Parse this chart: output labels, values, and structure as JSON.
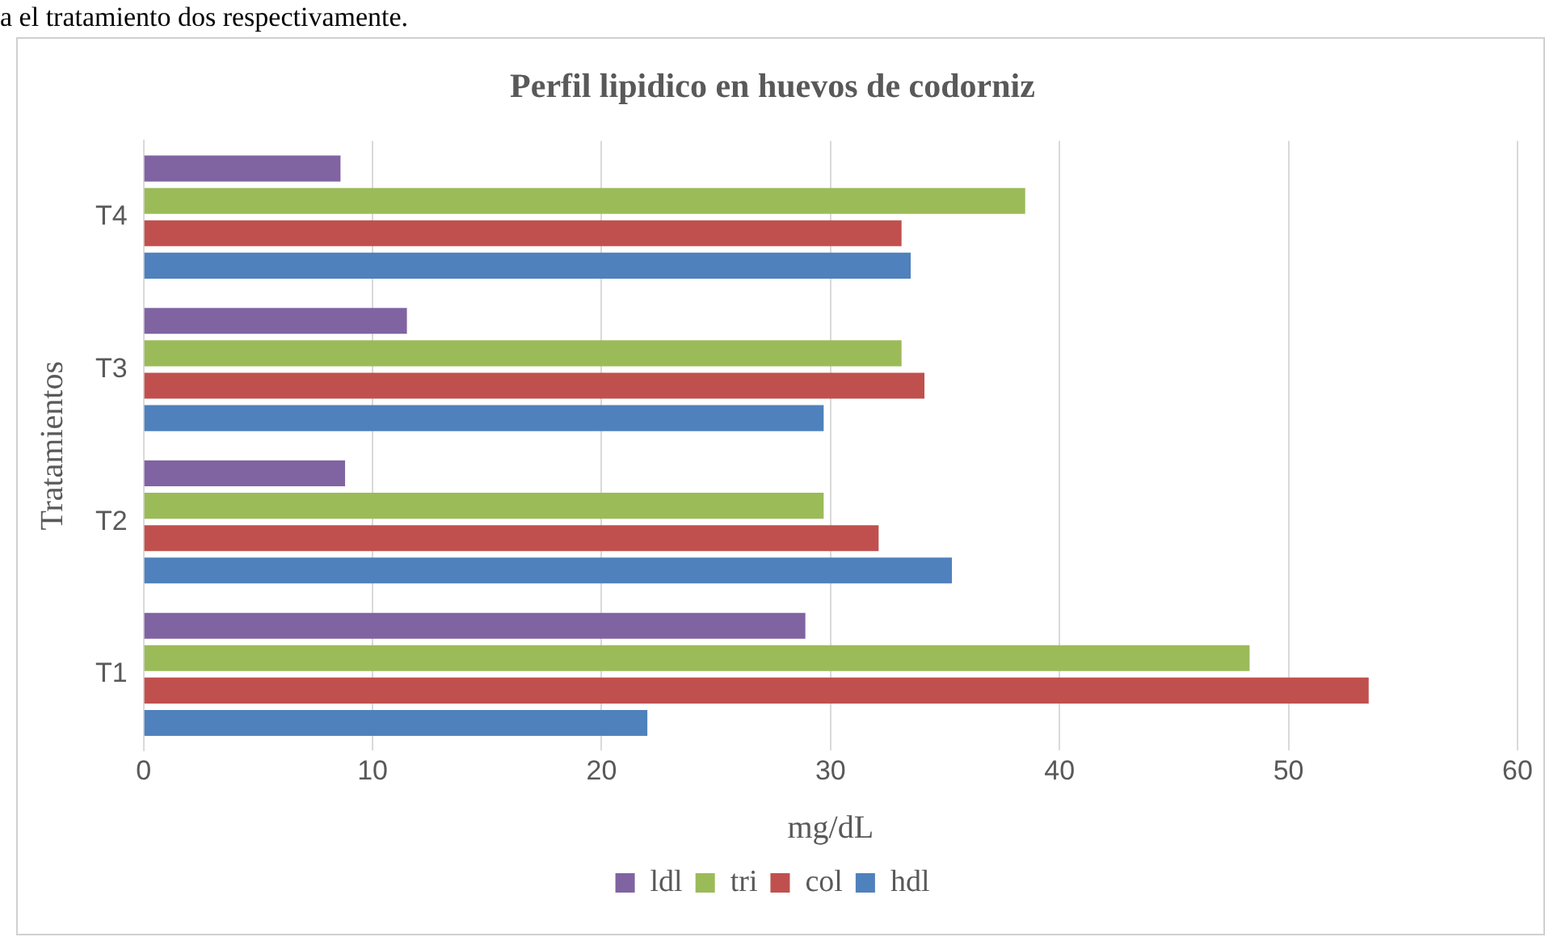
{
  "chart_data": {
    "type": "bar",
    "orientation": "horizontal",
    "title": "Perfil lipidico en huevos de codorniz",
    "xlabel": "mg/dL",
    "ylabel": "Tratamientos",
    "annotations": [
      "a el tratamiento dos respectivamente."
    ],
    "categories": [
      "T4",
      "T3",
      "T2",
      "T1"
    ],
    "series": [
      {
        "name": "ldl",
        "color": "#8064a2",
        "values": [
          8.6,
          11.5,
          8.8,
          28.9
        ]
      },
      {
        "name": "tri",
        "color": "#9bbb59",
        "values": [
          38.5,
          33.1,
          29.7,
          48.3
        ]
      },
      {
        "name": "col",
        "color": "#c0504d",
        "values": [
          33.1,
          34.1,
          32.1,
          53.5
        ]
      },
      {
        "name": "hdl",
        "color": "#4f81bd",
        "values": [
          33.5,
          29.7,
          35.3,
          22.0
        ]
      }
    ],
    "xlim": [
      0,
      60
    ],
    "xticks": [
      0,
      10,
      20,
      30,
      40,
      50,
      60
    ],
    "grid": "x",
    "legend": "bottom"
  }
}
